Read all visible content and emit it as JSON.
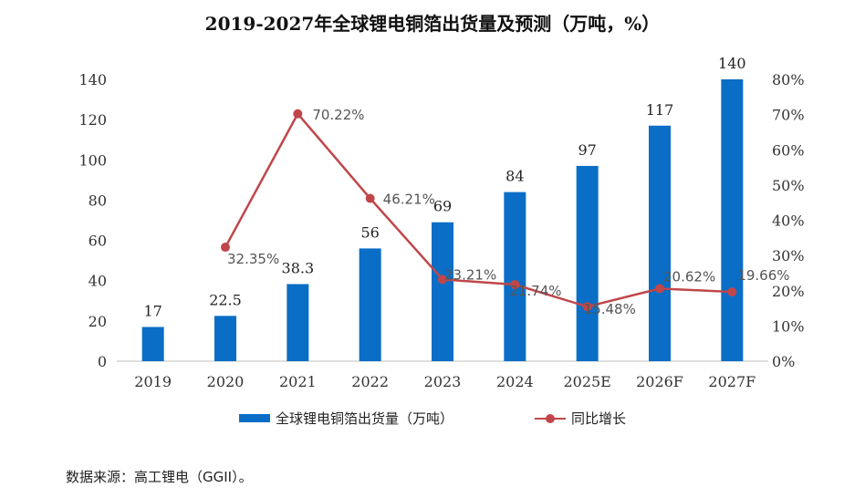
{
  "chart_data": {
    "type": "bar",
    "title": "2019-2027年全球锂电铜箔出货量及预测（万吨，%）",
    "categories": [
      "2019",
      "2020",
      "2021",
      "2022",
      "2023",
      "2024",
      "2025E",
      "2026F",
      "2027F"
    ],
    "series": [
      {
        "name": "全球锂电铜箔出货量（万吨）",
        "type": "bar",
        "axis": "left",
        "color": "#0A6EC6",
        "values": [
          17,
          22.5,
          38.3,
          56,
          69,
          84,
          97,
          117,
          140
        ],
        "labels": [
          "17",
          "22.5",
          "38.3",
          "56",
          "69",
          "84",
          "97",
          "117",
          "140"
        ]
      },
      {
        "name": "同比增长",
        "type": "line",
        "axis": "right",
        "color": "#C0464A",
        "values": [
          null,
          32.35,
          70.22,
          46.21,
          23.21,
          21.74,
          15.48,
          20.62,
          19.66
        ],
        "labels": [
          "",
          "32.35%",
          "70.22%",
          "46.21%",
          "23.21%",
          "21.74%",
          "15.48%",
          "20.62%",
          "19.66%"
        ]
      }
    ],
    "y_left": {
      "min": 0,
      "max": 140,
      "step": 20,
      "ticks": [
        "0",
        "20",
        "40",
        "60",
        "80",
        "100",
        "120",
        "140"
      ]
    },
    "y_right": {
      "min": 0,
      "max": 80,
      "step": 10,
      "ticks": [
        "0%",
        "10%",
        "20%",
        "30%",
        "40%",
        "50%",
        "60%",
        "70%",
        "80%"
      ]
    },
    "grid": false,
    "legend_position": "bottom"
  },
  "legend": {
    "bar_label": "全球锂电铜箔出货量（万吨）",
    "line_label": "同比增长"
  },
  "source": "数据来源：高工锂电（GGII）。"
}
